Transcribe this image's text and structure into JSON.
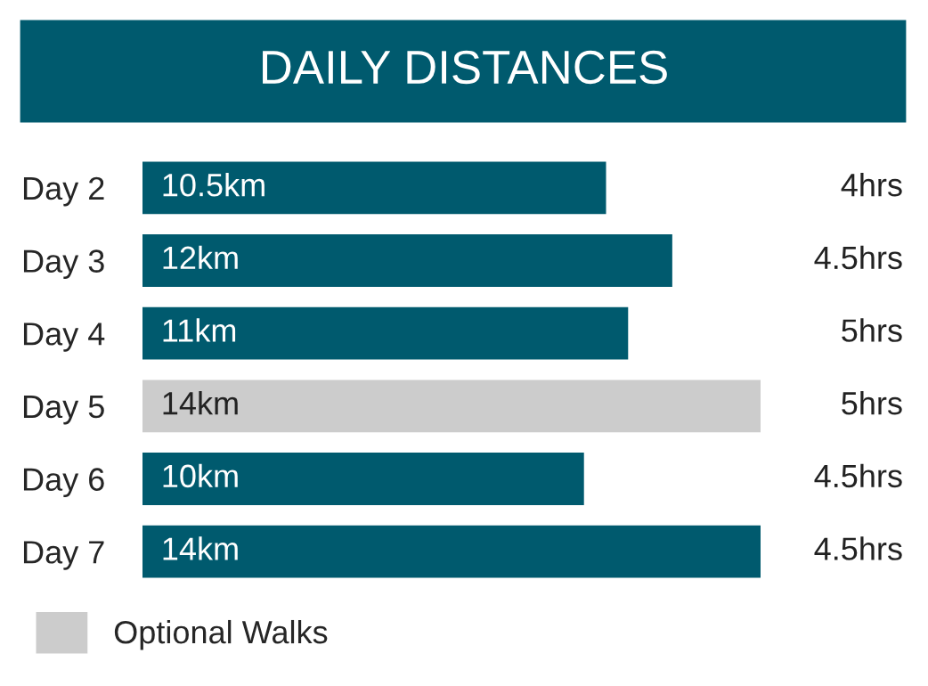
{
  "chart_data": {
    "type": "bar",
    "orientation": "horizontal",
    "title": "DAILY DISTANCES",
    "categories": [
      "Day 2",
      "Day 3",
      "Day 4",
      "Day 5",
      "Day 6",
      "Day 7"
    ],
    "series": [
      {
        "color": "#005a6e",
        "values": [
          10.5,
          12,
          11,
          null,
          10,
          14
        ],
        "value_labels": [
          "10.5km",
          "12km",
          "11km",
          null,
          "10km",
          "14km"
        ]
      },
      {
        "name": "Optional Walks",
        "color": "#cccccc",
        "values": [
          null,
          null,
          null,
          14,
          null,
          null
        ],
        "value_labels": [
          null,
          null,
          null,
          "14km",
          null,
          null
        ]
      }
    ],
    "annotations": [
      "4hrs",
      "4.5hrs",
      "5hrs",
      "5hrs",
      "4.5hrs",
      "4.5hrs"
    ],
    "legend": "bottom left",
    "grid": false
  }
}
